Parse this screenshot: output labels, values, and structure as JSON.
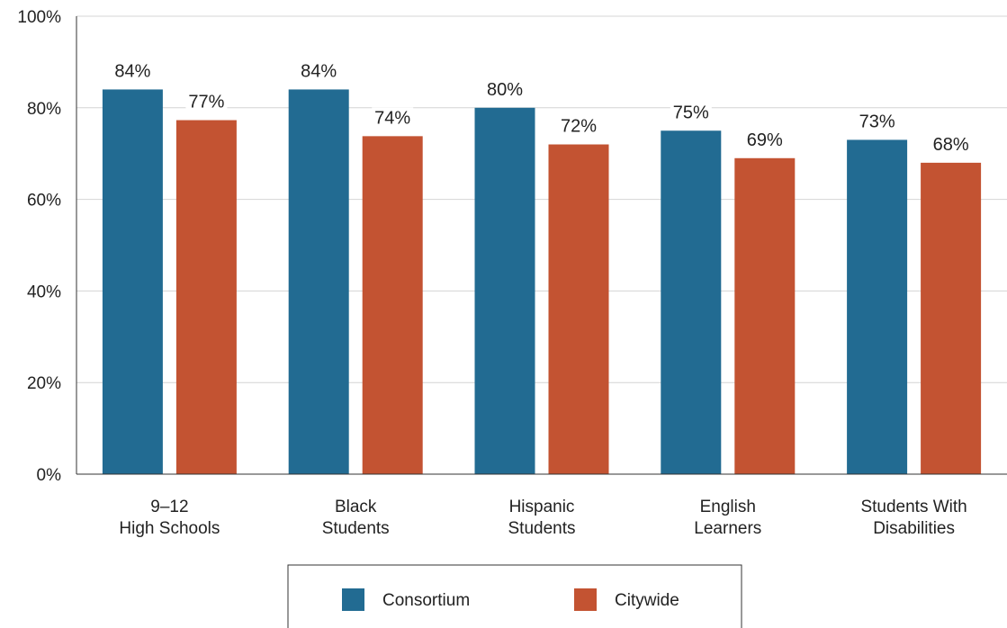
{
  "chart_data": {
    "type": "bar",
    "title": "",
    "xlabel": "",
    "ylabel": "",
    "categories": [
      [
        "9–12",
        "High Schools"
      ],
      [
        "Black",
        "Students"
      ],
      [
        "Hispanic",
        "Students"
      ],
      [
        "English",
        "Learners"
      ],
      [
        "Students With",
        "Disabilities"
      ]
    ],
    "series": [
      {
        "name": "Consortium",
        "color": "#226b92",
        "values": [
          84,
          84,
          80,
          75,
          73
        ],
        "labels": [
          "84%",
          "84%",
          "80%",
          "75%",
          "73%"
        ]
      },
      {
        "name": "Citywide",
        "color": "#c35332",
        "values": [
          77.3,
          73.8,
          72,
          69,
          68
        ],
        "labels": [
          "77%",
          "74%",
          "72%",
          "69%",
          "68%"
        ]
      }
    ],
    "ylim": [
      0,
      100
    ],
    "yticks": [
      0,
      20,
      40,
      60,
      80,
      100
    ],
    "ytick_labels": [
      "0%",
      "20%",
      "40%",
      "60%",
      "80%",
      "100%"
    ],
    "grid": true,
    "legend": "bottom-center"
  }
}
